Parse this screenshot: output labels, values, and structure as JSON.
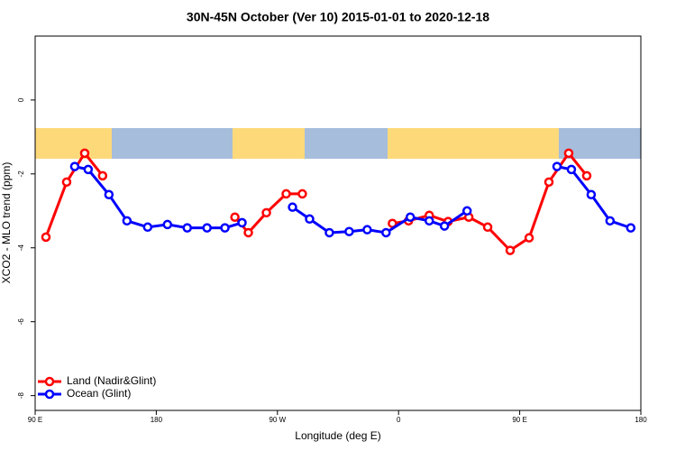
{
  "chart_data": {
    "type": "line",
    "title": "30N-45N October (Ver 10)   2015-01-01 to 2020-12-18",
    "x_label": "Longitude (deg E)",
    "y_label": "XCO2 - MLO trend (ppm)",
    "xlim": [
      90,
      540
    ],
    "xticks": [
      {
        "value": 90,
        "label": "90 E"
      },
      180,
      {
        "value": 270,
        "label": "90 W"
      },
      {
        "value": 360,
        "label": "0"
      },
      {
        "value": 450,
        "label": "90 E"
      },
      {
        "value": 540,
        "label": "180"
      }
    ],
    "ylim": [
      -8.4,
      1.73
    ],
    "yticks": [
      0,
      -2,
      -4,
      -6,
      -8
    ],
    "legend": "bottom-left",
    "series": [
      {
        "name": "Land (Nadir&Glint)",
        "color": "#ff0000",
        "x": [
          98,
          113.4,
          126.8,
          140.1,
          null,
          238.4,
          248.4,
          261.8,
          276.5,
          288.5,
          null,
          355.4,
          367.4,
          382.8,
          396.8,
          412.2,
          426.2,
          442.9,
          457,
          471.7,
          486.4,
          499.8
        ],
        "values": [
          -3.71,
          -2.22,
          -1.44,
          -2.05,
          null,
          -3.17,
          -3.59,
          -3.05,
          -2.54,
          -2.54,
          null,
          -3.34,
          -3.27,
          -3.12,
          -3.29,
          -3.17,
          -3.44,
          -4.07,
          -3.73,
          -2.22,
          -1.44,
          -2.05
        ]
      },
      {
        "name": "Ocean (Glint)",
        "color": "#0000ff",
        "x": [
          119.4,
          129.4,
          144.8,
          158.2,
          173.6,
          188.3,
          203,
          217.7,
          231,
          243.7,
          null,
          281.2,
          293.9,
          308.6,
          323.3,
          336.7,
          350.7,
          368.7,
          382.8,
          394.1,
          410.9,
          null,
          477.7,
          488.4,
          503.1,
          517.1,
          532.5
        ],
        "values": [
          -1.8,
          -1.88,
          -2.56,
          -3.27,
          -3.44,
          -3.37,
          -3.46,
          -3.46,
          -3.46,
          -3.32,
          null,
          -2.9,
          -3.22,
          -3.59,
          -3.56,
          -3.51,
          -3.59,
          -3.17,
          -3.27,
          -3.41,
          -3.0,
          null,
          -1.8,
          -1.88,
          -2.56,
          -3.27,
          -3.46
        ]
      }
    ]
  }
}
